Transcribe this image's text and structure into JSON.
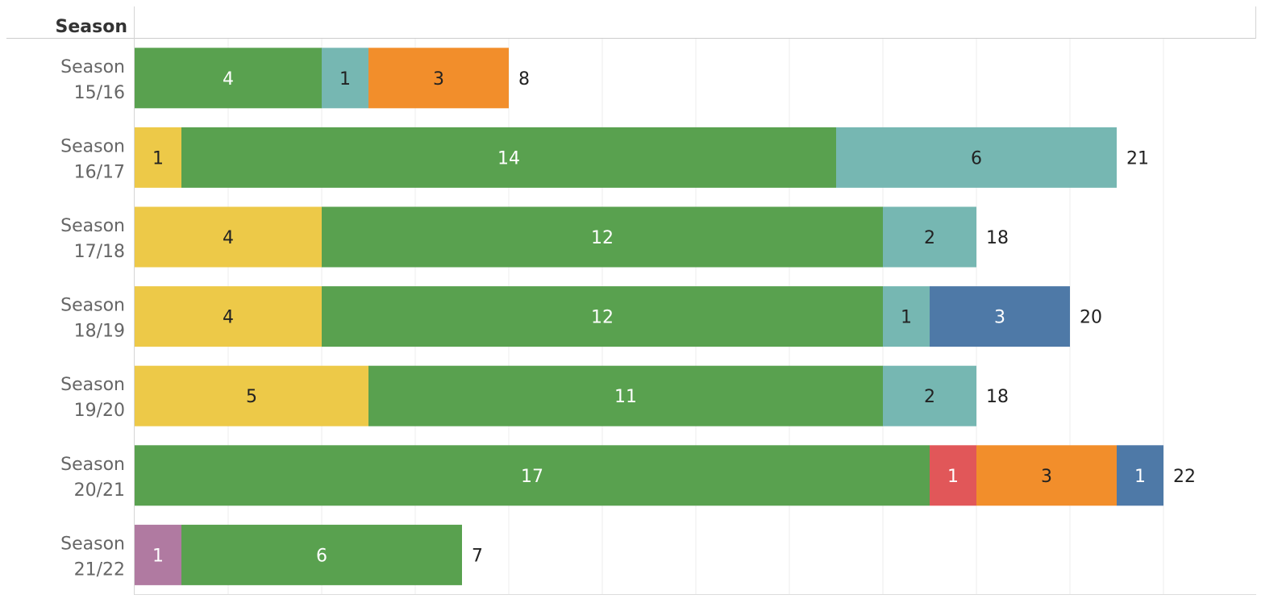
{
  "chart_data": {
    "type": "bar",
    "orientation": "horizontal",
    "stacked": true,
    "header_label": "Season",
    "categories": [
      "Season 15/16",
      "Season 16/17",
      "Season 17/18",
      "Season 18/19",
      "Season 19/20",
      "Season 20/21",
      "Season 21/22"
    ],
    "category_lines": [
      [
        "Season",
        "15/16"
      ],
      [
        "Season",
        "16/17"
      ],
      [
        "Season",
        "17/18"
      ],
      [
        "Season",
        "18/19"
      ],
      [
        "Season",
        "19/20"
      ],
      [
        "Season",
        "20/21"
      ],
      [
        "Season",
        "21/22"
      ]
    ],
    "series": [
      {
        "color": "#b07aa1",
        "label_color": "#ffffff",
        "values": [
          0,
          0,
          0,
          0,
          0,
          0,
          1
        ]
      },
      {
        "color": "#edc948",
        "label_color": "#222222",
        "values": [
          0,
          1,
          4,
          4,
          5,
          0,
          0
        ]
      },
      {
        "color": "#59a14f",
        "label_color": "#ffffff",
        "values": [
          4,
          14,
          12,
          12,
          11,
          17,
          6
        ]
      },
      {
        "color": "#76b7b2",
        "label_color": "#222222",
        "values": [
          1,
          6,
          2,
          1,
          2,
          0,
          0
        ]
      },
      {
        "color": "#e15759",
        "label_color": "#ffffff",
        "values": [
          0,
          0,
          0,
          0,
          0,
          1,
          0
        ]
      },
      {
        "color": "#4e79a7",
        "label_color": "#ffffff",
        "values": [
          0,
          0,
          0,
          3,
          0,
          0,
          0
        ]
      },
      {
        "color": "#f28e2b",
        "label_color": "#222222",
        "values": [
          3,
          0,
          0,
          0,
          0,
          3,
          0
        ]
      },
      {
        "color": "#4e79a7",
        "label_color": "#ffffff",
        "values": [
          0,
          0,
          0,
          0,
          0,
          1,
          0
        ]
      }
    ],
    "totals": [
      8,
      21,
      18,
      20,
      18,
      22,
      7
    ],
    "xlim": [
      0,
      24
    ],
    "grid_step": 2,
    "grid": true,
    "show_x_axis_labels": false
  }
}
